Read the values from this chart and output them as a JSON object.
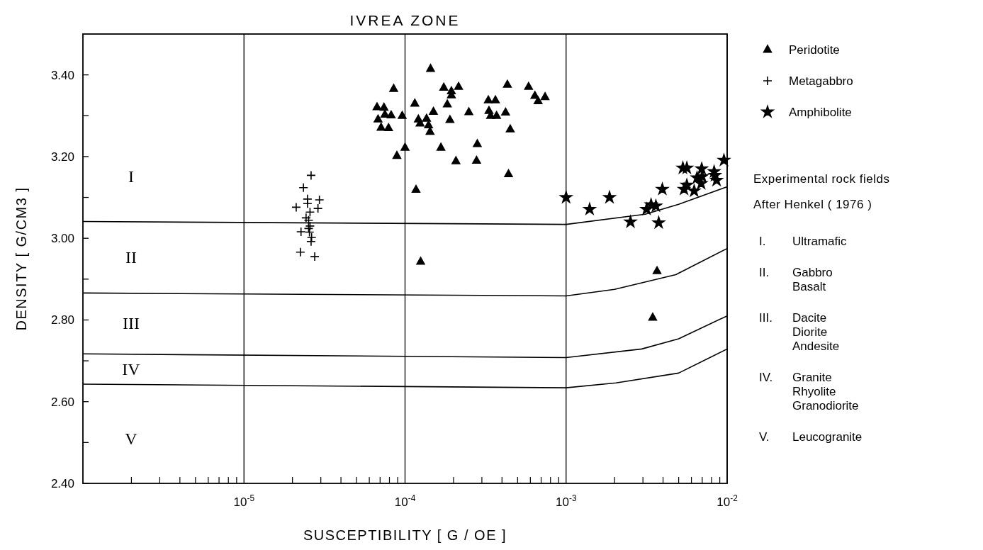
{
  "chart_data": {
    "type": "scatter",
    "title": "IVREA ZONE",
    "xlabel": "SUSCEPTIBILITY [ G / OE ]",
    "ylabel": "DENSITY [ G/CM3 ]",
    "log": "x",
    "xlim": [
      1e-06,
      0.01
    ],
    "ylim": [
      2.4,
      3.5
    ],
    "xticks": [
      {
        "value": 2e-06,
        "label": null
      },
      {
        "value": 3e-06,
        "label": null
      },
      {
        "value": 4e-06,
        "label": null
      },
      {
        "value": 5e-06,
        "label": null
      },
      {
        "value": 6e-06,
        "label": null
      },
      {
        "value": 7e-06,
        "label": null
      },
      {
        "value": 8e-06,
        "label": null
      },
      {
        "value": 9e-06,
        "label": null
      },
      {
        "value": 1e-05,
        "label": "10$^{-5}$"
      },
      {
        "value": 2e-05,
        "label": null
      },
      {
        "value": 3e-05,
        "label": null
      },
      {
        "value": 4e-05,
        "label": null
      },
      {
        "value": 5e-05,
        "label": null
      },
      {
        "value": 6e-05,
        "label": null
      },
      {
        "value": 7e-05,
        "label": null
      },
      {
        "value": 8e-05,
        "label": null
      },
      {
        "value": 9e-05,
        "label": null
      },
      {
        "value": 0.0001,
        "label": "10$^{-4}$"
      },
      {
        "value": 0.0002,
        "label": null
      },
      {
        "value": 0.0003,
        "label": null
      },
      {
        "value": 0.0004,
        "label": null
      },
      {
        "value": 0.0005,
        "label": null
      },
      {
        "value": 0.0006,
        "label": null
      },
      {
        "value": 0.0007,
        "label": null
      },
      {
        "value": 0.0008,
        "label": null
      },
      {
        "value": 0.0009,
        "label": null
      },
      {
        "value": 0.001,
        "label": "10$^{-3}$"
      },
      {
        "value": 0.002,
        "label": null
      },
      {
        "value": 0.003,
        "label": null
      },
      {
        "value": 0.004,
        "label": null
      },
      {
        "value": 0.005,
        "label": null
      },
      {
        "value": 0.006,
        "label": null
      },
      {
        "value": 0.007,
        "label": null
      },
      {
        "value": 0.008,
        "label": null
      },
      {
        "value": 0.009,
        "label": null
      },
      {
        "value": 0.01,
        "label": "10$^{-2}$"
      }
    ],
    "yticks": [
      {
        "value": 2.4,
        "label": "2.40"
      },
      {
        "value": 2.5,
        "label": null
      },
      {
        "value": 2.6,
        "label": "2.60"
      },
      {
        "value": 2.7,
        "label": null
      },
      {
        "value": 2.8,
        "label": "2.80"
      },
      {
        "value": 2.9,
        "label": null
      },
      {
        "value": 3.0,
        "label": "3.00"
      },
      {
        "value": 3.1,
        "label": null
      },
      {
        "value": 3.2,
        "label": "3.20"
      },
      {
        "value": 3.3,
        "label": null
      },
      {
        "value": 3.4,
        "label": "3.40"
      }
    ],
    "grid": "x",
    "legend": "right",
    "series": [
      {
        "name": "Peridotite",
        "color": "#000000",
        "marker": "triangle",
        "x": [
          8.5e-05,
          6.7e-05,
          7.4e-05,
          6.8e-05,
          7.5e-05,
          8.2e-05,
          9.6e-05,
          7.1e-05,
          7.9e-05,
          0.0001,
          8.9e-05,
          0.000144,
          0.000174,
          0.000194,
          0.000215,
          0.000194,
          0.000115,
          0.000183,
          0.00015,
          0.000121,
          0.000136,
          0.000124,
          0.00014,
          0.000143,
          0.00019,
          0.000249,
          0.000329,
          0.000364,
          0.000332,
          0.00034,
          0.00037,
          0.000421,
          0.000432,
          0.00045,
          0.000585,
          0.00064,
          0.00067,
          0.00074,
          0.000167,
          0.000281,
          0.000207,
          0.000278,
          0.000439,
          0.000117,
          0.000125,
          0.00367,
          0.00345
        ],
        "values": [
          3.366,
          3.321,
          3.32,
          3.291,
          3.303,
          3.301,
          3.3,
          3.271,
          3.27,
          3.222,
          3.202,
          3.415,
          3.369,
          3.36,
          3.371,
          3.35,
          3.33,
          3.328,
          3.31,
          3.291,
          3.293,
          3.281,
          3.277,
          3.261,
          3.29,
          3.309,
          3.338,
          3.338,
          3.312,
          3.3,
          3.3,
          3.308,
          3.376,
          3.267,
          3.371,
          3.349,
          3.336,
          3.346,
          3.222,
          3.231,
          3.189,
          3.19,
          3.157,
          3.119,
          2.943,
          2.92,
          2.806
        ]
      },
      {
        "name": "Metagabbro",
        "color": "#000000",
        "marker": "cross",
        "x": [
          2.61e-05,
          2.34e-05,
          2.48e-05,
          2.94e-05,
          2.48e-05,
          2.11e-05,
          2.88e-05,
          2.57e-05,
          2.43e-05,
          2.52e-05,
          2.57e-05,
          2.26e-05,
          2.55e-05,
          2.52e-05,
          2.63e-05,
          2.61e-05,
          2.24e-05,
          2.75e-05
        ],
        "values": [
          3.154,
          3.124,
          3.096,
          3.094,
          3.085,
          3.076,
          3.073,
          3.064,
          3.05,
          3.044,
          3.03,
          3.016,
          3.015,
          3.024,
          3.002,
          2.992,
          2.966,
          2.955
        ]
      },
      {
        "name": "Amphibolite",
        "color": "#000000",
        "marker": "star",
        "x": [
          0.001,
          0.0014,
          0.00186,
          0.00251,
          0.00316,
          0.00337,
          0.00361,
          0.00376,
          0.00396,
          0.00531,
          0.00562,
          0.0054,
          0.00562,
          0.00624,
          0.00695,
          0.0065,
          0.007,
          0.0069,
          0.0083,
          0.0086,
          0.00955,
          0.0084
        ],
        "values": [
          3.1,
          3.071,
          3.1,
          3.04,
          3.071,
          3.082,
          3.079,
          3.038,
          3.12,
          3.172,
          3.172,
          3.12,
          3.13,
          3.116,
          3.17,
          3.148,
          3.151,
          3.134,
          3.163,
          3.142,
          3.191,
          3.154
        ]
      },
      {
        "type": "line",
        "color": "#000000",
        "marker": "none",
        "x": [
          1e-06,
          0.001,
          0.0031,
          0.005,
          0.01
        ],
        "values": [
          3.041,
          3.034,
          3.059,
          3.083,
          3.126
        ]
      },
      {
        "type": "line",
        "color": "#000000",
        "marker": "none",
        "x": [
          1e-06,
          0.001,
          0.002,
          0.0048,
          0.01
        ],
        "values": [
          2.866,
          2.859,
          2.875,
          2.911,
          2.975
        ]
      },
      {
        "type": "line",
        "color": "#000000",
        "marker": "none",
        "x": [
          1e-06,
          0.001,
          0.00295,
          0.005,
          0.01
        ],
        "values": [
          2.717,
          2.708,
          2.729,
          2.754,
          2.81
        ]
      },
      {
        "type": "line",
        "color": "#000000",
        "marker": "none",
        "x": [
          1e-06,
          0.001,
          0.00204,
          0.005,
          0.01
        ],
        "values": [
          2.643,
          2.634,
          2.646,
          2.67,
          2.729
        ]
      }
    ],
    "annotations": [
      "I",
      "II",
      "III",
      "IV",
      "V",
      "Experimental rock fields",
      "After Henkel ( 1976 )",
      "I. Ultramafic",
      "II. Gabbro\nBasalt",
      "III. Dacite\nDiorite\nAndesite",
      "IV. Granite\nRhyolite\nGranodiorite",
      "V. Leucogranite"
    ]
  }
}
